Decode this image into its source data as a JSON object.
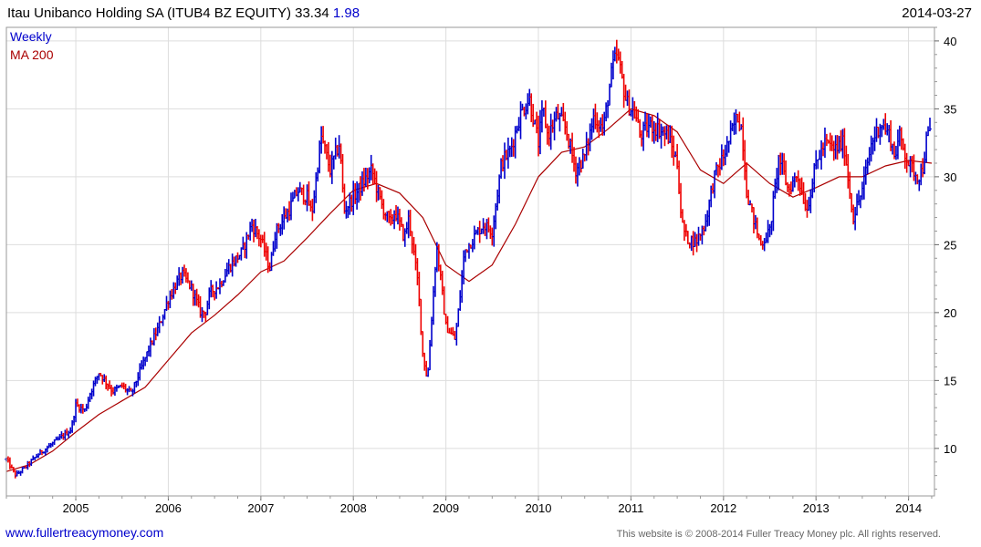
{
  "header": {
    "title": "Itau Unibanco Holding SA (ITUB4 BZ EQUITY) 33.34",
    "change": "1.98",
    "date": "2014-03-27"
  },
  "footer": {
    "site": "www.fullertreacymoney.com",
    "copyright": "This website is © 2008-2014 Fuller Treacy Money plc. All rights reserved."
  },
  "colors": {
    "up": "#0000cc",
    "down": "#ee0000",
    "ma": "#aa0000",
    "grid": "#dddddd",
    "frame": "#999999"
  },
  "chart_data": {
    "type": "line",
    "style": "weekly-candles",
    "xlim": [
      2004.25,
      2014.28
    ],
    "ylim": [
      6.5,
      41
    ],
    "y_ticks": [
      10,
      15,
      20,
      25,
      30,
      35,
      40
    ],
    "x_ticks": [
      "2005",
      "2006",
      "2007",
      "2008",
      "2009",
      "2010",
      "2011",
      "2012",
      "2013",
      "2014"
    ],
    "y_axis_side": "right",
    "grid": true,
    "legend_position": "top-left",
    "series": [
      {
        "name": "Weekly",
        "x": [
          2004.25,
          2004.35,
          2004.45,
          2004.6,
          2004.8,
          2004.95,
          2005.0,
          2005.1,
          2005.15,
          2005.25,
          2005.4,
          2005.5,
          2005.6,
          2005.7,
          2005.8,
          2005.9,
          2006.0,
          2006.1,
          2006.15,
          2006.25,
          2006.35,
          2006.4,
          2006.45,
          2006.55,
          2006.65,
          2006.8,
          2006.9,
          2007.0,
          2007.1,
          2007.15,
          2007.3,
          2007.4,
          2007.5,
          2007.55,
          2007.6,
          2007.65,
          2007.75,
          2007.85,
          2007.9,
          2008.0,
          2008.1,
          2008.2,
          2008.3,
          2008.4,
          2008.45,
          2008.55,
          2008.6,
          2008.7,
          2008.75,
          2008.8,
          2008.85,
          2008.9,
          2009.0,
          2009.1,
          2009.15,
          2009.2,
          2009.3,
          2009.4,
          2009.5,
          2009.6,
          2009.7,
          2009.8,
          2009.9,
          2010.0,
          2010.05,
          2010.1,
          2010.2,
          2010.3,
          2010.4,
          2010.5,
          2010.6,
          2010.7,
          2010.8,
          2010.85,
          2010.95,
          2011.05,
          2011.1,
          2011.2,
          2011.3,
          2011.4,
          2011.5,
          2011.55,
          2011.6,
          2011.7,
          2011.8,
          2011.9,
          2012.0,
          2012.1,
          2012.15,
          2012.2,
          2012.25,
          2012.3,
          2012.4,
          2012.5,
          2012.6,
          2012.7,
          2012.8,
          2012.9,
          2013.0,
          2013.1,
          2013.2,
          2013.3,
          2013.4,
          2013.5,
          2013.6,
          2013.7,
          2013.8,
          2013.85,
          2013.9,
          2014.0,
          2014.1,
          2014.15,
          2014.2,
          2014.24
        ],
        "y": [
          9.2,
          8.0,
          8.6,
          9.6,
          10.6,
          11.4,
          13.2,
          12.8,
          14.0,
          15.6,
          14.2,
          14.6,
          14.0,
          15.8,
          17.5,
          19.0,
          21.0,
          22.3,
          22.8,
          21.8,
          20.0,
          20.0,
          21.5,
          22.0,
          23.3,
          24.5,
          26.5,
          25.4,
          23.2,
          25.8,
          27.5,
          29.0,
          28.5,
          27.2,
          30.0,
          33.0,
          30.5,
          32.5,
          27.5,
          28.5,
          29.5,
          30.5,
          28.0,
          26.5,
          27.5,
          25.5,
          27.0,
          22.0,
          17.0,
          15.0,
          20.0,
          25.0,
          19.0,
          18.0,
          21.0,
          24.5,
          25.5,
          26.5,
          26.0,
          31.0,
          32.0,
          34.5,
          35.8,
          32.5,
          35.0,
          33.0,
          34.5,
          33.5,
          30.5,
          31.5,
          34.5,
          33.5,
          38.0,
          39.0,
          35.5,
          34.5,
          33.0,
          33.8,
          33.5,
          33.0,
          31.0,
          26.5,
          25.5,
          25.2,
          26.5,
          30.0,
          31.5,
          33.5,
          34.5,
          33.5,
          29.0,
          27.5,
          25.0,
          26.0,
          31.5,
          29.0,
          30.2,
          27.5,
          31.0,
          32.5,
          32.0,
          32.5,
          27.0,
          29.0,
          32.5,
          34.0,
          33.0,
          31.5,
          33.0,
          31.0,
          30.0,
          30.5,
          33.0,
          33.3
        ]
      },
      {
        "name": "MA 200",
        "x": [
          2004.25,
          2004.5,
          2004.75,
          2005.0,
          2005.25,
          2005.5,
          2005.75,
          2006.0,
          2006.25,
          2006.5,
          2006.75,
          2007.0,
          2007.25,
          2007.5,
          2007.75,
          2008.0,
          2008.25,
          2008.5,
          2008.75,
          2009.0,
          2009.25,
          2009.5,
          2009.75,
          2010.0,
          2010.25,
          2010.5,
          2010.75,
          2011.0,
          2011.25,
          2011.5,
          2011.75,
          2012.0,
          2012.25,
          2012.5,
          2012.75,
          2013.0,
          2013.25,
          2013.5,
          2013.75,
          2014.0,
          2014.25
        ],
        "y": [
          8.3,
          8.8,
          9.8,
          11.2,
          12.5,
          13.5,
          14.5,
          16.5,
          18.5,
          19.8,
          21.3,
          23.0,
          23.8,
          25.5,
          27.3,
          29.0,
          29.5,
          28.8,
          27.0,
          23.5,
          22.3,
          23.5,
          26.5,
          30.0,
          31.8,
          32.2,
          33.5,
          35.0,
          34.5,
          33.3,
          30.5,
          29.5,
          31.0,
          29.5,
          28.5,
          29.2,
          30.0,
          30.0,
          30.8,
          31.2,
          31.0
        ]
      }
    ]
  }
}
